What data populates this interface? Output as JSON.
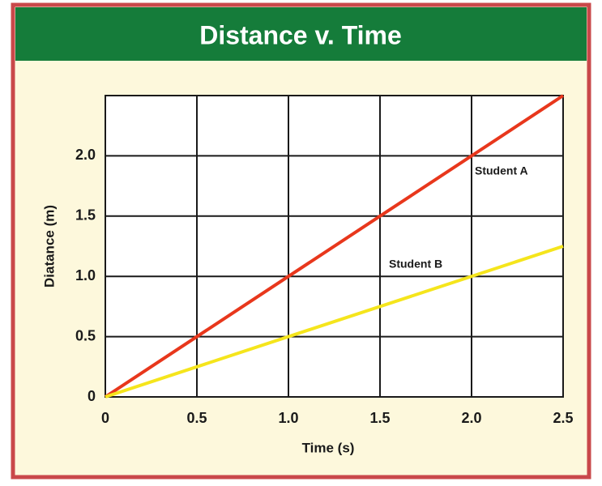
{
  "chart_data": {
    "type": "line",
    "title": "Distance v. Time",
    "xlabel": "Time (s)",
    "ylabel": "Diatance (m)",
    "x": [
      0,
      2.5
    ],
    "series": [
      {
        "name": "Student A",
        "color": "#e8371c",
        "values": [
          0,
          2.5
        ]
      },
      {
        "name": "Student B",
        "color": "#f5e51c",
        "values": [
          0,
          1.25
        ]
      }
    ],
    "xlim": [
      0,
      2.5
    ],
    "ylim": [
      0,
      2.5
    ],
    "xticks": [
      0,
      0.5,
      {
        "value": 1,
        "label": "1.0"
      },
      1.5,
      {
        "value": 2,
        "label": "2.0"
      },
      2.5
    ],
    "yticks": [
      0,
      0.5,
      {
        "value": 1,
        "label": "1.0"
      },
      1.5,
      {
        "value": 2,
        "label": "2.0"
      }
    ],
    "grid": true
  }
}
